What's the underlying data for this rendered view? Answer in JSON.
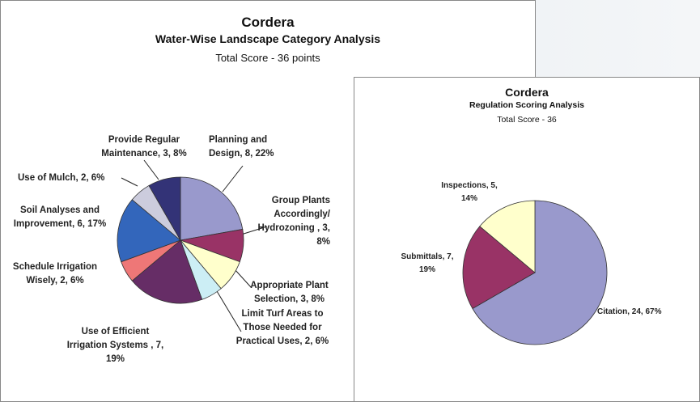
{
  "chart_data": [
    {
      "type": "pie",
      "title": "Cordera",
      "subtitle": "Water-Wise Landscape Category Analysis",
      "caption": "Total Score - 36 points",
      "labels": [
        "Planning and Design, 8, 22%",
        "Group Plants Accordingly/ Hydrozoning , 3, 8%",
        "Appropriate Plant Selection, 3, 8%",
        "Limit Turf Areas to Those Needed for Practical Uses, 2, 6%",
        "Use of Efficient Irrigation Systems , 7, 19%",
        "Schedule Irrigation Wisely, 2, 6%",
        "Soil Analyses and Improvement, 6, 17%",
        "Use of Mulch, 2, 6%",
        "Provide Regular Maintenance, 3, 8%"
      ],
      "values": [
        8,
        3,
        3,
        2,
        7,
        2,
        6,
        2,
        3
      ],
      "colors": [
        "#9999cc",
        "#993366",
        "#ffffcc",
        "#cceef5",
        "#662d66",
        "#ee7777",
        "#3366bb",
        "#ccccdd",
        "#333377"
      ]
    },
    {
      "type": "pie",
      "title": "Cordera",
      "subtitle": "Regulation Scoring Analysis",
      "caption": "Total Score - 36",
      "labels": [
        "Citation, 24, 67%",
        "Submittals, 7, 19%",
        "Inspections, 5, 14%"
      ],
      "values": [
        24,
        7,
        5
      ],
      "colors": [
        "#9999cc",
        "#993366",
        "#ffffcc"
      ]
    }
  ]
}
